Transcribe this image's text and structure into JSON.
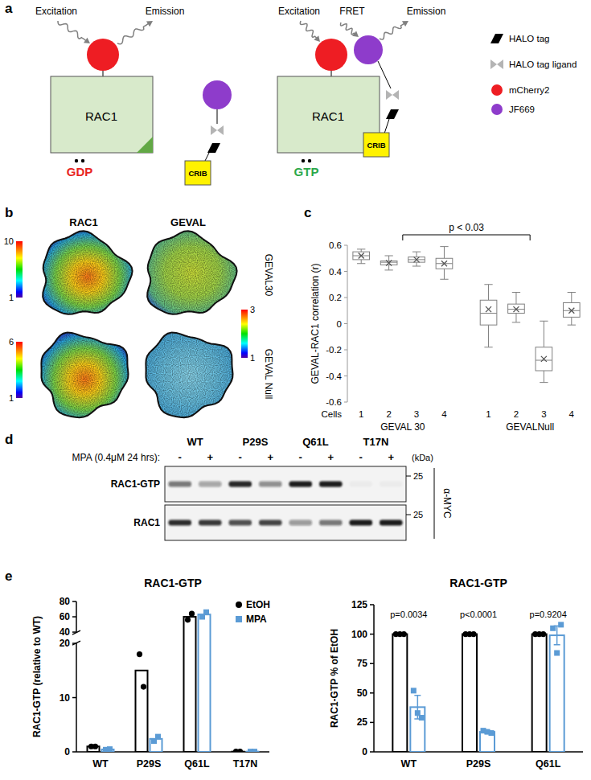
{
  "panel_labels": [
    "a",
    "b",
    "c",
    "d",
    "e"
  ],
  "diagram": {
    "left": {
      "excitation": "Excitation",
      "emission": "Emission",
      "protein": "RAC1",
      "nucleotide": "GDP",
      "nucleotide_color": "#e8251f",
      "sensor": "CRIB"
    },
    "right": {
      "excitation": "Excitation",
      "fret": "FRET",
      "emission": "Emission",
      "protein": "RAC1",
      "nucleotide": "GTP",
      "nucleotide_color": "#2ca84a",
      "sensor": "CRIB"
    },
    "legend": [
      {
        "label": "HALO tag",
        "color": "#000000"
      },
      {
        "label": "HALO tag ligand",
        "color": "#b4b4b4"
      },
      {
        "label": "mCherry2",
        "color": "#ee1d23"
      },
      {
        "label": "JF669",
        "color": "#8e3ccb"
      }
    ]
  },
  "images": {
    "columns": [
      "RAC1",
      "GEVAL"
    ],
    "rows": [
      "GEVAL30",
      "GEVAL Null"
    ],
    "colorbars": [
      {
        "ticks": [
          1,
          10
        ]
      },
      {
        "ticks": [
          1,
          3
        ]
      },
      {
        "ticks": [
          1,
          6
        ]
      }
    ]
  },
  "chart_data": [
    {
      "type": "box",
      "y_label": "GEVAL-RAC1 correlation (r)",
      "x_label": "Cells",
      "categories": [
        "1",
        "2",
        "3",
        "4"
      ],
      "series": [
        {
          "name": "GEVAL 30",
          "color": "#808080",
          "min": [
            0.46,
            0.41,
            0.44,
            0.34
          ],
          "q1": [
            0.49,
            0.45,
            0.47,
            0.42
          ],
          "median": [
            0.52,
            0.47,
            0.49,
            0.46
          ],
          "q3": [
            0.55,
            0.48,
            0.51,
            0.5
          ],
          "max": [
            0.57,
            0.52,
            0.55,
            0.59
          ],
          "mean": [
            0.52,
            0.465,
            0.49,
            0.46
          ]
        },
        {
          "name": "GEVALNull",
          "color": "#808080",
          "min": [
            -0.18,
            0.01,
            -0.45,
            -0.01
          ],
          "q1": [
            -0.01,
            0.08,
            -0.36,
            0.05
          ],
          "median": [
            0.08,
            0.11,
            -0.28,
            0.1
          ],
          "q3": [
            0.18,
            0.15,
            -0.18,
            0.16
          ],
          "max": [
            0.3,
            0.24,
            0.02,
            0.24
          ],
          "mean": [
            0.11,
            0.11,
            -0.27,
            0.1
          ]
        }
      ],
      "ylim": [
        -0.6,
        0.6
      ],
      "yticks": [
        -0.6,
        -0.4,
        -0.2,
        0,
        0.2,
        0.4,
        0.6
      ],
      "annotations": [
        "p < 0.03"
      ]
    },
    {
      "type": "bar",
      "title": "RAC1-GTP",
      "y_label": "RAC1-GTP (relative to WT)",
      "categories": [
        "WT",
        "P29S",
        "Q61L",
        "T17N"
      ],
      "series": [
        {
          "name": "EtOH",
          "color": "#000000",
          "marker": "circle",
          "values": [
            1,
            15,
            60,
            0.05
          ],
          "points": [
            [
              1,
              1
            ],
            [
              18,
              12
            ],
            [
              56,
              64
            ],
            [
              0.05,
              0.05
            ]
          ]
        },
        {
          "name": "MPA",
          "color": "#5b9bd5",
          "marker": "square",
          "values": [
            0.45,
            2.4,
            63,
            0.05
          ],
          "points": [
            [
              0.4,
              0.5
            ],
            [
              2.0,
              2.8
            ],
            [
              60,
              66
            ],
            [
              0.05,
              0.05
            ]
          ]
        }
      ],
      "ylim": [
        0,
        80
      ],
      "y_break": [
        20,
        40
      ],
      "yticks": [
        0,
        10,
        20,
        40,
        60,
        80
      ],
      "legend": "top-right"
    },
    {
      "type": "bar",
      "title": "RAC1-GTP",
      "y_label": "RAC1-GTP % of EtOH",
      "categories": [
        "WT",
        "P29S",
        "Q61L"
      ],
      "series": [
        {
          "name": "EtOH",
          "color": "#000000",
          "marker": "circle",
          "values": [
            100,
            100,
            100
          ],
          "errors": [
            0,
            0,
            0
          ],
          "points": [
            [
              100,
              100,
              100
            ],
            [
              100,
              100,
              100
            ],
            [
              100,
              100,
              100
            ]
          ]
        },
        {
          "name": "MPA",
          "color": "#5b9bd5",
          "marker": "square",
          "values": [
            38,
            17,
            99
          ],
          "errors": [
            10,
            1,
            8
          ],
          "points": [
            [
              52,
              33,
              29
            ],
            [
              18,
              17,
              16
            ],
            [
              105,
              84,
              108
            ]
          ]
        }
      ],
      "ylim": [
        0,
        125
      ],
      "yticks": [
        0,
        25,
        50,
        75,
        100,
        125
      ],
      "annotations": [
        "p=0.0034",
        "p<0.0001",
        "p=0.9204"
      ]
    }
  ],
  "blot": {
    "header": [
      "WT",
      "P29S",
      "Q61L",
      "T17N"
    ],
    "treatment_label": "MPA (0.4μM 24 hrs):",
    "treatment": [
      "-",
      "+",
      "-",
      "+",
      "-",
      "+",
      "-",
      "+"
    ],
    "rows": [
      {
        "label": "RAC1-GTP",
        "intensity": [
          0.55,
          0.35,
          0.95,
          0.45,
          1.0,
          1.0,
          0.03,
          0.03
        ]
      },
      {
        "label": "RAC1",
        "intensity": [
          0.9,
          0.85,
          0.75,
          0.8,
          0.4,
          0.55,
          1.0,
          1.0
        ]
      }
    ],
    "units": "(kDa)",
    "kda_marker": 25,
    "antibody": "α-MYC"
  }
}
